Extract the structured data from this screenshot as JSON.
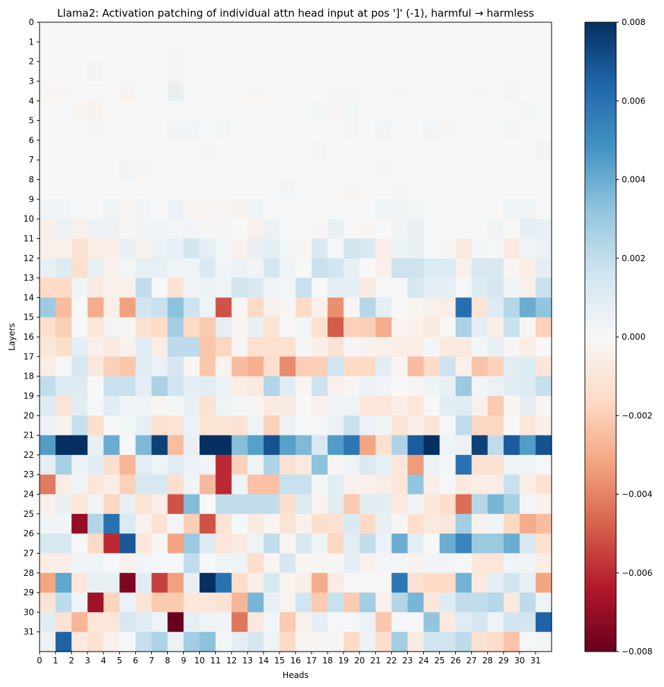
{
  "chart_data": {
    "type": "heatmap",
    "title": "Llama2: Activation patching of individual attn head input at pos ']' (-1), harmful → harmless",
    "xlabel": "Heads",
    "ylabel": "Layers",
    "x_ticks": [
      "0",
      "1",
      "2",
      "3",
      "4",
      "5",
      "6",
      "7",
      "8",
      "9",
      "10",
      "11",
      "12",
      "13",
      "14",
      "15",
      "16",
      "17",
      "18",
      "19",
      "20",
      "21",
      "22",
      "23",
      "24",
      "25",
      "26",
      "27",
      "28",
      "29",
      "30",
      "31"
    ],
    "y_ticks": [
      "0",
      "1",
      "2",
      "3",
      "4",
      "5",
      "6",
      "7",
      "8",
      "9",
      "10",
      "11",
      "12",
      "13",
      "14",
      "15",
      "16",
      "17",
      "18",
      "19",
      "20",
      "21",
      "22",
      "23",
      "24",
      "25",
      "26",
      "27",
      "28",
      "29",
      "30",
      "31"
    ],
    "colorbar": {
      "colormap": "RdBu",
      "vmin": -0.008,
      "vmax": 0.008,
      "ticks": [
        "0.008",
        "0.006",
        "0.004",
        "0.002",
        "0.000",
        "−0.002",
        "−0.004",
        "−0.006",
        "−0.008"
      ]
    },
    "z": [
      [
        0,
        0,
        0,
        0,
        0,
        0,
        0,
        0,
        0,
        0,
        0,
        0,
        0,
        0,
        0,
        0,
        0,
        0,
        0,
        0,
        0,
        0,
        0,
        0,
        0,
        0,
        0,
        0,
        0,
        0,
        0,
        0
      ],
      [
        0,
        0,
        0,
        0,
        0,
        0,
        0,
        0,
        -0.0001,
        0,
        0,
        0,
        0,
        0,
        0,
        0,
        0,
        0,
        0,
        0,
        0,
        0,
        0,
        0,
        0,
        0,
        0,
        0,
        0,
        0,
        0,
        0
      ],
      [
        0,
        0,
        0,
        0.0003,
        0,
        0,
        0,
        0,
        -0.0001,
        0,
        0,
        0,
        0,
        0,
        0,
        0,
        0,
        0,
        0,
        0,
        0,
        0,
        0,
        0,
        0,
        0,
        0,
        0,
        0,
        0,
        0,
        0
      ],
      [
        -0.0002,
        -0.0002,
        0.0001,
        0.0001,
        0,
        -0.0003,
        0,
        0,
        0.0006,
        0,
        0,
        0,
        0,
        -0.0002,
        0,
        0,
        0,
        0,
        -0.0001,
        -0.0001,
        0,
        0,
        -0.0001,
        0,
        0,
        0,
        0,
        -0.0001,
        0,
        0.0002,
        0,
        0
      ],
      [
        0,
        0.0001,
        -0.0002,
        -0.0003,
        0,
        0,
        0,
        0,
        0.0001,
        0,
        0,
        0,
        0,
        0,
        0,
        0,
        0,
        0.0002,
        -0.0001,
        0.0002,
        0,
        0,
        0,
        0,
        0,
        0,
        0,
        0,
        0,
        0,
        0.0002,
        0
      ],
      [
        0,
        0.0001,
        0,
        -0.0001,
        0,
        0,
        0,
        0,
        0.0003,
        0.0003,
        0,
        0.0002,
        0,
        0,
        0,
        0,
        0,
        0,
        0,
        0.0002,
        0,
        0.0003,
        0,
        0,
        0.0003,
        -0.0001,
        0,
        0,
        0,
        0.0002,
        0,
        0
      ],
      [
        0,
        0,
        0,
        0,
        0,
        0,
        0,
        0.0001,
        0,
        0,
        -0.0002,
        0,
        0,
        0,
        0,
        0,
        0,
        0.0002,
        0,
        0,
        0,
        0,
        0,
        0,
        0,
        0,
        0,
        0,
        0,
        0,
        0,
        0.0003
      ],
      [
        0,
        0,
        0,
        0,
        0,
        0.0003,
        -0.0002,
        0,
        0,
        0,
        0,
        0,
        0,
        0,
        0,
        0,
        0,
        0,
        0,
        0,
        0,
        -0.0001,
        0,
        0,
        0,
        0,
        0,
        0,
        0,
        0,
        0,
        0
      ],
      [
        0,
        0,
        0,
        0,
        0,
        0,
        0,
        0,
        0,
        0,
        0,
        0,
        0,
        0,
        0,
        0.0003,
        0,
        0,
        0,
        -0.0002,
        0,
        0,
        -0.0002,
        0,
        0,
        0,
        0,
        0,
        0,
        0,
        0,
        0
      ],
      [
        0.0003,
        0.0003,
        0,
        0,
        0.0004,
        -0.0002,
        0.0003,
        0,
        0.0005,
        -0.0002,
        -0.0002,
        -0.0002,
        -0.0003,
        0.0004,
        0,
        0,
        0,
        0,
        0,
        0,
        0,
        0.0004,
        0.0004,
        0.0002,
        0,
        0,
        0,
        0,
        0,
        0.0004,
        0.0004,
        0
      ],
      [
        -0.0005,
        0.0005,
        -0.0004,
        0.0005,
        0.0005,
        -0.0001,
        0.0003,
        0.0004,
        0.0002,
        0.0003,
        -0.0001,
        -0.0001,
        0,
        -0.0004,
        0.0005,
        0,
        0,
        -0.0001,
        0.0006,
        0,
        -0.0002,
        0,
        0.0003,
        0.0006,
        0,
        0,
        0,
        0,
        0.0004,
        0,
        0.0008,
        0.0006
      ],
      [
        -0.0004,
        -0.0004,
        -0.0012,
        -0.0006,
        -0.0006,
        0.0006,
        -0.0003,
        0.0005,
        0.0007,
        0.0015,
        0.0008,
        0.0002,
        -0.0004,
        0.0006,
        0.0008,
        0.0002,
        -0.0002,
        0.0012,
        0.0001,
        0.0016,
        0.0012,
        -0.0006,
        0.0005,
        0.0006,
        0,
        -0.0001,
        -0.0008,
        0.0002,
        0.0001,
        -0.0008,
        0.0003,
        0.0005
      ],
      [
        0.0006,
        0.0011,
        -0.0014,
        0.0006,
        -0.0003,
        0.0002,
        0.0007,
        0.0007,
        0.0004,
        0.0004,
        0.0012,
        0.0003,
        0.0005,
        0.0003,
        0.0014,
        0.0004,
        0,
        0.0018,
        0.0015,
        0.0007,
        0,
        -0.0004,
        0.0017,
        0.0017,
        0.0011,
        0.0011,
        -0.0004,
        0.0013,
        0.0013,
        -0.0002,
        -0.0006,
        0.0008
      ],
      [
        -0.0016,
        -0.0016,
        0.0004,
        -0.0007,
        -0.0004,
        -0.0004,
        0.002,
        0.0001,
        -0.0012,
        0.0003,
        0.0005,
        0.0004,
        0.0016,
        0.0012,
        0.0004,
        0.0002,
        0.0018,
        0.0001,
        0.0008,
        0.0008,
        -0.0007,
        0.0001,
        0.0001,
        0.0014,
        0.0008,
        0.0008,
        0.0001,
        0.0011,
        0.0014,
        0.0004,
        -0.0004,
        0.0018
      ],
      [
        0.0029,
        -0.0025,
        0,
        -0.003,
        -0.0005,
        -0.0033,
        0.0016,
        0.0018,
        0.0033,
        0.0017,
        0.0004,
        -0.0051,
        -0.0002,
        -0.0016,
        -0.0004,
        -0.0001,
        -0.0016,
        -0.0004,
        -0.0037,
        -0.0001,
        0.0023,
        0.0008,
        0,
        -0.0002,
        -0.0004,
        -0.0006,
        0.0061,
        -0.0011,
        0.0011,
        0.0023,
        0.004,
        0.0032
      ],
      [
        -0.0014,
        -0.002,
        0,
        -0.001,
        0.0003,
        -0.0002,
        -0.0013,
        -0.0016,
        0.0028,
        -0.0016,
        -0.0021,
        0.0008,
        -0.0002,
        0.0006,
        -0.0011,
        0,
        0.0002,
        -0.0013,
        -0.0049,
        -0.0019,
        -0.002,
        -0.003,
        -0.0002,
        -0.0004,
        -0.0008,
        0,
        0.0026,
        0.0008,
        -0.0005,
        0.0018,
        -0.0001,
        -0.0019
      ],
      [
        -0.001,
        -0.0014,
        0.0008,
        -0.0004,
        -0.0008,
        -0.0003,
        0.001,
        -0.0006,
        0.0021,
        0.0021,
        -0.0022,
        -0.0017,
        -0.0002,
        -0.0013,
        -0.0013,
        -0.0013,
        -0.0001,
        -0.0005,
        -0.0012,
        -0.0001,
        -0.0003,
        -0.0004,
        -0.0006,
        -0.0006,
        0.0002,
        -0.0008,
        -0.0008,
        0.0002,
        0.0006,
        -0.0001,
        -0.0006,
        0
      ],
      [
        -0.0006,
        0.0001,
        0.0014,
        -0.0009,
        -0.0019,
        -0.0022,
        0.001,
        0.0005,
        0.0014,
        -0.0002,
        -0.0022,
        -0.0003,
        -0.0025,
        -0.0029,
        -0.0014,
        -0.0038,
        -0.002,
        -0.002,
        0.0016,
        -0.0016,
        -0.0016,
        0.0009,
        -0.0002,
        -0.0025,
        -0.0016,
        0.0017,
        -0.0004,
        -0.0023,
        -0.0018,
        0.0009,
        0.0011,
        -0.001
      ],
      [
        0.002,
        0.0011,
        0.0011,
        0,
        0.0018,
        0.0018,
        0.0008,
        0.0026,
        0.0016,
        0.0008,
        0.0009,
        0.0005,
        -0.0006,
        -0.0008,
        0.0024,
        0.001,
        -0.0002,
        0.0017,
        -0.0004,
        -0.0001,
        0.0005,
        0.0003,
        0,
        -0.0002,
        0.0004,
        0.0006,
        0.003,
        0.0003,
        0.0005,
        0.0009,
        0.0011,
        0.0019
      ],
      [
        0.0011,
        -0.0011,
        0.0009,
        0.0001,
        0.001,
        0.0004,
        0.0004,
        -0.0002,
        0.0002,
        0.0006,
        -0.0012,
        0.0004,
        0.0002,
        -0.0002,
        -0.0007,
        -0.0007,
        0,
        -0.0004,
        0.0004,
        0.0004,
        -0.001,
        -0.001,
        -0.0006,
        -0.001,
        0,
        0.0009,
        0.001,
        -0.0004,
        -0.0021,
        -0.0002,
        0.0008,
        -0.0002
      ],
      [
        0.0005,
        -0.0003,
        0.0019,
        -0.0014,
        0.0001,
        0.0002,
        0.0007,
        -0.0013,
        -0.0011,
        0.0005,
        -0.0011,
        -0.0011,
        -0.0012,
        0.0004,
        -0.0019,
        0.0005,
        0.0001,
        0.0001,
        0.0005,
        0.0018,
        0.0005,
        0.0003,
        -0.0011,
        -0.0005,
        -0.0011,
        0.0001,
        0.002,
        -0.0017,
        -0.0017,
        0,
        -0.001,
        -0.0005
      ],
      [
        0.0045,
        0.0085,
        0.0085,
        0.0007,
        0.004,
        0.0001,
        0.0036,
        0.0075,
        -0.0025,
        0.0006,
        0.0085,
        0.0085,
        0.0034,
        0.0044,
        0.007,
        0.0044,
        0.0036,
        0.0013,
        0.0045,
        0.0058,
        -0.0032,
        -0.0013,
        0.0025,
        0.0067,
        0.0085,
        0.0004,
        0.0005,
        0.0075,
        0.0021,
        0.0067,
        0.0045,
        0.007
      ],
      [
        0.0008,
        0.0027,
        0.0005,
        0.0009,
        -0.0014,
        -0.0027,
        0.0009,
        0.0004,
        0.001,
        0.0005,
        0.0003,
        -0.006,
        -0.0019,
        0.0004,
        0.0025,
        -0.0012,
        -0.0008,
        0.0033,
        -0.0001,
        0.0004,
        0.0012,
        0.0007,
        -0.001,
        -0.0034,
        0.0005,
        0.0002,
        0.006,
        -0.0012,
        -0.0012,
        0.0004,
        0.0004,
        0.0001
      ],
      [
        -0.0042,
        -0.0006,
        0.0003,
        -0.001,
        -0.0006,
        -0.0019,
        0.0013,
        0.0013,
        -0.0014,
        0.0003,
        -0.0026,
        -0.006,
        0.0004,
        -0.0024,
        -0.0024,
        0.0018,
        0.0018,
        0.0002,
        0.0009,
        -0.0003,
        -0.0004,
        -0.0006,
        -0.001,
        0.0032,
        -0.0005,
        0.0001,
        -0.0008,
        -0.0006,
        -0.0006,
        0.0018,
        -0.0006,
        -0.0012
      ],
      [
        -0.0004,
        0.0006,
        -0.001,
        0.0003,
        -0.0017,
        0.0006,
        -0.0011,
        -0.0005,
        -0.0051,
        0.0035,
        0,
        0.002,
        0.002,
        0.002,
        0.002,
        -0.0014,
        0.0011,
        -0.0003,
        0.0009,
        -0.0021,
        0.0009,
        0.0009,
        -0.0008,
        0.0003,
        -0.001,
        -0.0014,
        -0.0045,
        0.0023,
        0.0037,
        0.0027,
        0.0002,
        -0.0003
      ],
      [
        0.0003,
        0.0003,
        -0.007,
        0.0024,
        0.006,
        0.0012,
        -0.0003,
        -0.0012,
        0.0002,
        -0.002,
        -0.0051,
        -0.0011,
        0.0001,
        -0.0007,
        -0.0002,
        -0.0011,
        -0.0004,
        -0.0014,
        -0.0012,
        0.0012,
        -0.0016,
        0.0006,
        -0.0001,
        -0.0014,
        -0.0008,
        -0.0009,
        0.0028,
        -0.0003,
        0.0003,
        -0.0017,
        -0.003,
        -0.0025
      ],
      [
        0.0013,
        0.0013,
        0,
        -0.0016,
        -0.006,
        0.0068,
        -0.001,
        -0.0001,
        -0.0032,
        0.003,
        0.0011,
        -0.001,
        -0.0008,
        0.0004,
        0.002,
        -0.0002,
        0.0013,
        0.0004,
        -0.0017,
        0.0009,
        0.002,
        0.0005,
        0.004,
        0.0009,
        0,
        0.004,
        0.0053,
        0.003,
        0.003,
        0.004,
        0.0013,
        -0.0013
      ],
      [
        -0.0006,
        -0.0006,
        0.0004,
        0.0004,
        0.0001,
        -0.0004,
        0.0003,
        0.0001,
        0.0001,
        0.002,
        0.0001,
        0.0004,
        0.0004,
        -0.0014,
        -0.0002,
        0.0014,
        -0.0002,
        -0.0002,
        -0.0001,
        0.0008,
        -0.0004,
        0.0002,
        0.0002,
        -0.0003,
        0.0003,
        0.0003,
        0.0001,
        -0.001,
        -0.001,
        0.0003,
        0.0003,
        -0.0006
      ],
      [
        -0.0032,
        0.0042,
        -0.001,
        0.0006,
        0.0006,
        -0.0075,
        0.001,
        -0.0055,
        -0.0033,
        0.0006,
        0.008,
        0.006,
        -0.0015,
        -0.0005,
        0.0013,
        -0.0002,
        -0.0005,
        -0.003,
        -0.0007,
        0.0001,
        0.0001,
        0.0001,
        0.0058,
        -0.0012,
        -0.0016,
        -0.0016,
        0.0038,
        -0.0008,
        0.0008,
        0.0016,
        0.0006,
        -0.0032
      ],
      [
        -0.0011,
        0.0021,
        0.0003,
        -0.0068,
        -0.0018,
        0.0005,
        -0.0011,
        -0.0021,
        -0.0021,
        -0.001,
        -0.001,
        -0.0012,
        -0.0027,
        0.0037,
        0.0007,
        -0.0003,
        0.0016,
        -0.0021,
        0.0018,
        -0.0021,
        0.0028,
        -0.0004,
        0.0024,
        0.0037,
        -0.001,
        0.0011,
        0.002,
        0.002,
        0.0023,
        -0.0008,
        0.0021,
        0.0004
      ],
      [
        0.0009,
        -0.0012,
        -0.0027,
        -0.001,
        -0.001,
        0.0014,
        0.001,
        0.0004,
        -0.008,
        0.0008,
        0.0004,
        0.0003,
        -0.0043,
        -0.0008,
        0.0002,
        -0.0021,
        -0.0004,
        0.0008,
        0.0001,
        0.0001,
        0.0005,
        -0.0022,
        0.0001,
        0.0001,
        0.0032,
        -0.0008,
        0.001,
        0.0014,
        0.0004,
        0.0016,
        0.0015,
        0.0065
      ],
      [
        0.0005,
        0.0065,
        -0.0008,
        -0.0012,
        -0.0004,
        0.0001,
        0.0019,
        0.0025,
        0.0005,
        0.0028,
        0.0033,
        0.0002,
        0.0008,
        0.0014,
        0.0004,
        -0.0016,
        -0.0002,
        -0.0001,
        -0.0001,
        -0.0016,
        0.0005,
        -0.0014,
        0.0028,
        -0.0007,
        0.0016,
        0.0016,
        0.0021,
        -0.0012,
        -0.0015,
        -0.0023,
        0.0001,
        0.0002
      ]
    ]
  }
}
